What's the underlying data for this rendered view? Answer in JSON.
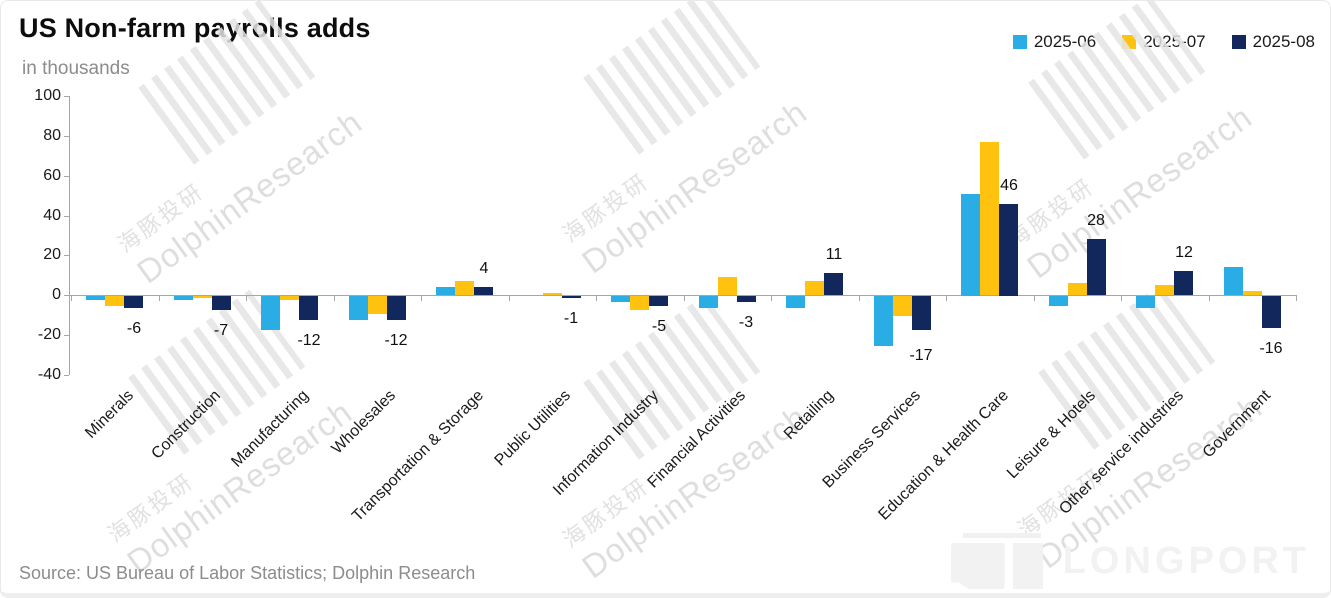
{
  "header": {
    "title": "US Non-farm payrolls adds",
    "subtitle": "in thousands"
  },
  "source": {
    "text": "Source: US Bureau of Labor Statistics; Dolphin Research"
  },
  "watermark": {
    "cn": "海豚投研",
    "en": "DolphinResearch"
  },
  "logo": {
    "text": "LONGPORT"
  },
  "chart_data": {
    "type": "bar",
    "title": "US Non-farm payrolls adds",
    "unit_label": "in thousands",
    "categories": [
      "Minerals",
      "Construction",
      "Manufacturing",
      "Wholesales",
      "Transportation & Storage",
      "Public Utilities",
      "Information Industry",
      "Financial Activities",
      "Retailing",
      "Business Services",
      "Education & Health Care",
      "Leisure & Hotels",
      "Other service industries",
      "Government"
    ],
    "series": [
      {
        "name": "2025-06",
        "color": "#29ADE4",
        "values": [
          -2,
          -2,
          -17,
          -12,
          4,
          0,
          -3,
          -6,
          -6,
          -25,
          51,
          -5,
          -6,
          14
        ],
        "data_labels": false
      },
      {
        "name": "2025-07",
        "color": "#FFC20E",
        "values": [
          -5,
          -1,
          -2,
          -9,
          7,
          1,
          -7,
          9,
          7,
          -10,
          77,
          6,
          5,
          2
        ],
        "data_labels": false
      },
      {
        "name": "2025-08",
        "color": "#12275B",
        "values": [
          -6,
          -7,
          -12,
          -12,
          4,
          -1,
          -5,
          -3,
          11,
          -17,
          46,
          28,
          12,
          -16
        ],
        "data_labels": true
      }
    ],
    "ylim": [
      -40,
      100
    ],
    "ytick_step": 20,
    "legend_position": "top-right",
    "grid": false,
    "axis_color": "#a6a6a6"
  }
}
